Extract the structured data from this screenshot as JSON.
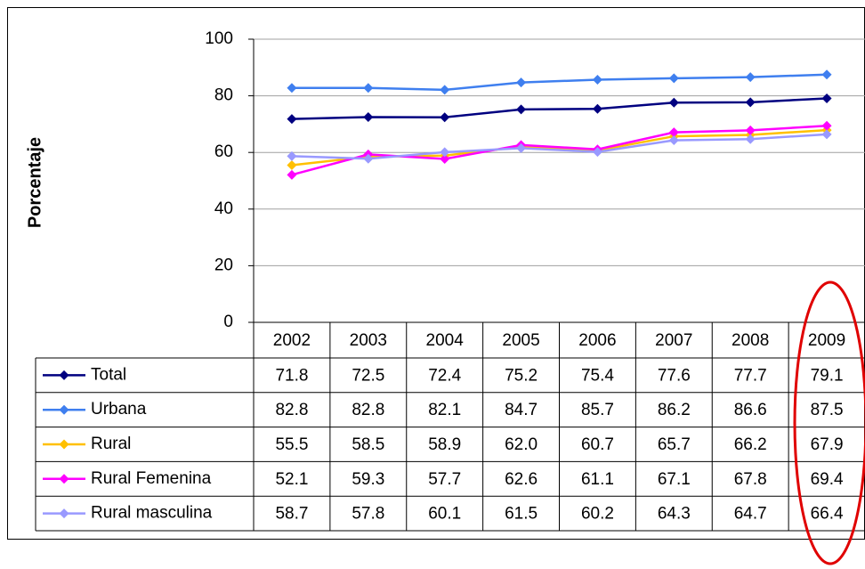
{
  "chart_data": {
    "type": "line",
    "y_label": "Porcentaje",
    "categories": [
      "2002",
      "2003",
      "2004",
      "2005",
      "2006",
      "2007",
      "2008",
      "2009"
    ],
    "ylim": [
      0,
      100
    ],
    "yticks": [
      0,
      20,
      40,
      60,
      80,
      100
    ],
    "grid": true,
    "series": [
      {
        "name": "Total",
        "color": "#000080",
        "values": [
          71.8,
          72.5,
          72.4,
          75.2,
          75.4,
          77.6,
          77.7,
          79.1
        ],
        "value_labels": [
          "71.8",
          "72.5",
          "72.4",
          "75.2",
          "75.4",
          "77.6",
          "77.7",
          "79.1"
        ]
      },
      {
        "name": "Urbana",
        "color": "#3f7fef",
        "values": [
          82.8,
          82.8,
          82.1,
          84.7,
          85.7,
          86.2,
          86.6,
          87.5
        ],
        "value_labels": [
          "82.8",
          "82.8",
          "82.1",
          "84.7",
          "85.7",
          "86.2",
          "86.6",
          "87.5"
        ]
      },
      {
        "name": "Rural",
        "color": "#ffc000",
        "values": [
          55.5,
          58.5,
          58.9,
          62.0,
          60.7,
          65.7,
          66.2,
          67.9
        ],
        "value_labels": [
          "55.5",
          "58.5",
          "58.9",
          "62.0",
          "60.7",
          "65.7",
          "66.2",
          "67.9"
        ]
      },
      {
        "name": "Rural Femenina",
        "color": "#ff00ff",
        "values": [
          52.1,
          59.3,
          57.7,
          62.6,
          61.1,
          67.1,
          67.8,
          69.4
        ],
        "value_labels": [
          "52.1",
          "59.3",
          "57.7",
          "62.6",
          "61.1",
          "67.1",
          "67.8",
          "69.4"
        ]
      },
      {
        "name": "Rural masculina",
        "color": "#9999ff",
        "values": [
          58.7,
          57.8,
          60.1,
          61.5,
          60.2,
          64.3,
          64.7,
          66.4
        ],
        "value_labels": [
          "58.7",
          "57.8",
          "60.1",
          "61.5",
          "60.2",
          "64.3",
          "64.7",
          "66.4"
        ]
      }
    ]
  }
}
